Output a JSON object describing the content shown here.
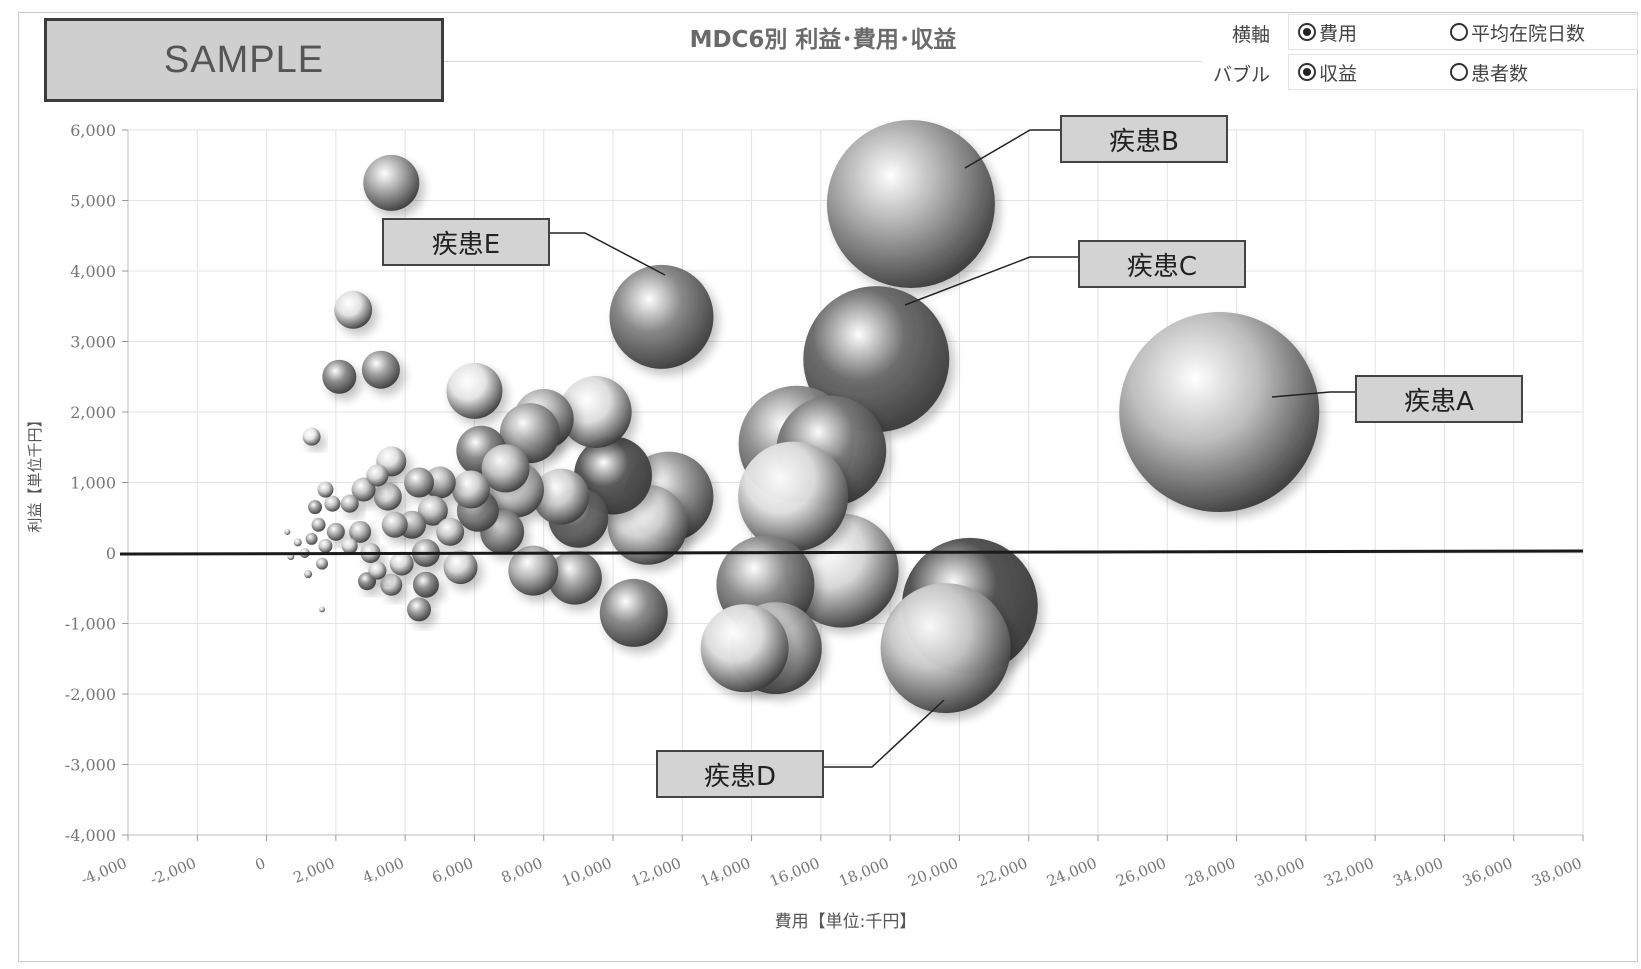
{
  "watermark": "SAMPLE",
  "options": {
    "row1_label": "横軸",
    "row1_opt1": "費用",
    "row1_opt2": "平均在院日数",
    "row2_label": "バブル",
    "row2_opt1": "収益",
    "row2_opt2": "患者数",
    "row1_selected": 1,
    "row2_selected": 1
  },
  "chart_data": {
    "type": "scatter",
    "title": "MDC6別 利益･費用･収益",
    "xlabel": "費用【単位:千円】",
    "ylabel": "利益【単位千円】",
    "xlim": [
      -4000,
      38000
    ],
    "ylim": [
      -4000,
      6000
    ],
    "x_ticks": [
      "-4,000",
      "-2,000",
      "0",
      "2,000",
      "4,000",
      "6,000",
      "8,000",
      "10,000",
      "12,000",
      "14,000",
      "16,000",
      "18,000",
      "20,000",
      "22,000",
      "24,000",
      "26,000",
      "28,000",
      "30,000",
      "32,000",
      "34,000",
      "36,000",
      "38,000"
    ],
    "x_tick_values": [
      -4000,
      -2000,
      0,
      2000,
      4000,
      6000,
      8000,
      10000,
      12000,
      14000,
      16000,
      18000,
      20000,
      22000,
      24000,
      26000,
      28000,
      30000,
      32000,
      34000,
      36000,
      38000
    ],
    "y_ticks": [
      "6,000",
      "5,000",
      "4,000",
      "3,000",
      "2,000",
      "1,000",
      "0",
      "-1,000",
      "-2,000",
      "-3,000",
      "-4,000"
    ],
    "y_tick_values": [
      6000,
      5000,
      4000,
      3000,
      2000,
      1000,
      0,
      -1000,
      -2000,
      -3000,
      -4000
    ],
    "grid": true,
    "bubble_size_metric": "収益",
    "bubbles": [
      {
        "x": 27500,
        "y": 2000,
        "r": 1.0,
        "tone": "#bdbdbd"
      },
      {
        "x": 18600,
        "y": 4950,
        "r": 0.84,
        "tone": "#a9a9a9"
      },
      {
        "x": 17600,
        "y": 2750,
        "r": 0.73,
        "tone": "#6a6a6a"
      },
      {
        "x": 20300,
        "y": -750,
        "r": 0.68,
        "tone": "#505050"
      },
      {
        "x": 19600,
        "y": -1350,
        "r": 0.65,
        "tone": "#c8c8c8"
      },
      {
        "x": 16600,
        "y": -250,
        "r": 0.57,
        "tone": "#d6d6d6"
      },
      {
        "x": 16300,
        "y": 1450,
        "r": 0.55,
        "tone": "#7a7a7a"
      },
      {
        "x": 15300,
        "y": 1550,
        "r": 0.58,
        "tone": "#909090"
      },
      {
        "x": 15200,
        "y": 800,
        "r": 0.55,
        "tone": "#dedede"
      },
      {
        "x": 14400,
        "y": -450,
        "r": 0.49,
        "tone": "#8a8a8a"
      },
      {
        "x": 14700,
        "y": -1350,
        "r": 0.46,
        "tone": "#b8b8b8"
      },
      {
        "x": 13800,
        "y": -1350,
        "r": 0.44,
        "tone": "#dcdcdc"
      },
      {
        "x": 11400,
        "y": 3350,
        "r": 0.52,
        "tone": "#858585"
      },
      {
        "x": 11600,
        "y": 800,
        "r": 0.45,
        "tone": "#9c9c9c"
      },
      {
        "x": 11000,
        "y": 400,
        "r": 0.4,
        "tone": "#d0d0d0"
      },
      {
        "x": 10000,
        "y": 1100,
        "r": 0.39,
        "tone": "#555555"
      },
      {
        "x": 9500,
        "y": 2000,
        "r": 0.36,
        "tone": "#dcdcdc"
      },
      {
        "x": 10600,
        "y": -850,
        "r": 0.34,
        "tone": "#888888"
      },
      {
        "x": 9000,
        "y": 500,
        "r": 0.3,
        "tone": "#777777"
      },
      {
        "x": 8500,
        "y": 800,
        "r": 0.28,
        "tone": "#cfcfcf"
      },
      {
        "x": 8000,
        "y": 1900,
        "r": 0.3,
        "tone": "#b0b0b0"
      },
      {
        "x": 7600,
        "y": 1700,
        "r": 0.3,
        "tone": "#a4a4a4"
      },
      {
        "x": 8900,
        "y": -350,
        "r": 0.27,
        "tone": "#a0a0a0"
      },
      {
        "x": 7700,
        "y": -250,
        "r": 0.25,
        "tone": "#b4b4b4"
      },
      {
        "x": 7200,
        "y": 900,
        "r": 0.28,
        "tone": "#e0e0e0"
      },
      {
        "x": 6000,
        "y": 2300,
        "r": 0.28,
        "tone": "#e4e4e4"
      },
      {
        "x": 6200,
        "y": 1450,
        "r": 0.25,
        "tone": "#858585"
      },
      {
        "x": 6900,
        "y": 1200,
        "r": 0.24,
        "tone": "#c4c4c4"
      },
      {
        "x": 6800,
        "y": 300,
        "r": 0.22,
        "tone": "#9a9a9a"
      },
      {
        "x": 6100,
        "y": 600,
        "r": 0.21,
        "tone": "#8c8c8c"
      },
      {
        "x": 5900,
        "y": 900,
        "r": 0.19,
        "tone": "#d2d2d2"
      },
      {
        "x": 5600,
        "y": -200,
        "r": 0.17,
        "tone": "#d8d8d8"
      },
      {
        "x": 3600,
        "y": 5250,
        "r": 0.28,
        "tone": "#a8a8a8"
      },
      {
        "x": 2500,
        "y": 3450,
        "r": 0.19,
        "tone": "#e2e2e2"
      },
      {
        "x": 3300,
        "y": 2600,
        "r": 0.19,
        "tone": "#999999"
      },
      {
        "x": 2100,
        "y": 2500,
        "r": 0.17,
        "tone": "#8a8a8a"
      },
      {
        "x": 3600,
        "y": 1300,
        "r": 0.15,
        "tone": "#e0e0e0"
      },
      {
        "x": 1300,
        "y": 1650,
        "r": 0.09,
        "tone": "#e8e8e8"
      },
      {
        "x": 5000,
        "y": 1000,
        "r": 0.16,
        "tone": "#bbbbbb"
      },
      {
        "x": 4400,
        "y": 1000,
        "r": 0.15,
        "tone": "#a9a9a9"
      },
      {
        "x": 4800,
        "y": 600,
        "r": 0.15,
        "tone": "#c4c4c4"
      },
      {
        "x": 4200,
        "y": 400,
        "r": 0.14,
        "tone": "#b8b8b8"
      },
      {
        "x": 3500,
        "y": 800,
        "r": 0.14,
        "tone": "#d4d4d4"
      },
      {
        "x": 3700,
        "y": 400,
        "r": 0.13,
        "tone": "#c0c0c0"
      },
      {
        "x": 4600,
        "y": 0,
        "r": 0.14,
        "tone": "#a4a4a4"
      },
      {
        "x": 5300,
        "y": 300,
        "r": 0.14,
        "tone": "#cbcbcb"
      },
      {
        "x": 4600,
        "y": -450,
        "r": 0.13,
        "tone": "#8a8a8a"
      },
      {
        "x": 4400,
        "y": -800,
        "r": 0.12,
        "tone": "#9c9c9c"
      },
      {
        "x": 3900,
        "y": -150,
        "r": 0.12,
        "tone": "#d9d9d9"
      },
      {
        "x": 3600,
        "y": -450,
        "r": 0.11,
        "tone": "#cfcfcf"
      },
      {
        "x": 2800,
        "y": 900,
        "r": 0.12,
        "tone": "#c4c4c4"
      },
      {
        "x": 3200,
        "y": 1100,
        "r": 0.11,
        "tone": "#d6d6d6"
      },
      {
        "x": 2700,
        "y": 300,
        "r": 0.11,
        "tone": "#b8b8b8"
      },
      {
        "x": 3000,
        "y": 0,
        "r": 0.1,
        "tone": "#cbcbcb"
      },
      {
        "x": 2900,
        "y": -400,
        "r": 0.09,
        "tone": "#888888"
      },
      {
        "x": 3200,
        "y": -250,
        "r": 0.09,
        "tone": "#d2d2d2"
      },
      {
        "x": 2400,
        "y": 700,
        "r": 0.09,
        "tone": "#bcbcbc"
      },
      {
        "x": 2000,
        "y": 300,
        "r": 0.09,
        "tone": "#aaaaaa"
      },
      {
        "x": 1900,
        "y": 700,
        "r": 0.08,
        "tone": "#c6c6c6"
      },
      {
        "x": 1700,
        "y": 900,
        "r": 0.08,
        "tone": "#d0d0d0"
      },
      {
        "x": 1400,
        "y": 650,
        "r": 0.07,
        "tone": "#999999"
      },
      {
        "x": 1500,
        "y": 400,
        "r": 0.07,
        "tone": "#b2b2b2"
      },
      {
        "x": 2400,
        "y": 100,
        "r": 0.08,
        "tone": "#d8d8d8"
      },
      {
        "x": 1700,
        "y": 100,
        "r": 0.07,
        "tone": "#c8c8c8"
      },
      {
        "x": 1300,
        "y": 200,
        "r": 0.06,
        "tone": "#a8a8a8"
      },
      {
        "x": 1100,
        "y": 0,
        "r": 0.05,
        "tone": "#d2d2d2"
      },
      {
        "x": 1600,
        "y": -150,
        "r": 0.06,
        "tone": "#bcbcbc"
      },
      {
        "x": 900,
        "y": 150,
        "r": 0.04,
        "tone": "#cccccc"
      },
      {
        "x": 700,
        "y": -50,
        "r": 0.035,
        "tone": "#d8d8d8"
      },
      {
        "x": 600,
        "y": 300,
        "r": 0.03,
        "tone": "#d0d0d0"
      },
      {
        "x": 1200,
        "y": -300,
        "r": 0.04,
        "tone": "#c2c2c2"
      },
      {
        "x": 1600,
        "y": -800,
        "r": 0.03,
        "tone": "#d2d2d2"
      }
    ],
    "annotations": [
      {
        "text": "疾患A",
        "x": 27500,
        "y": 2000
      },
      {
        "text": "疾患B",
        "x": 18600,
        "y": 4950
      },
      {
        "text": "疾患C",
        "x": 17600,
        "y": 2750
      },
      {
        "text": "疾患D",
        "x": 19600,
        "y": -1350
      },
      {
        "text": "疾患E",
        "x": 11400,
        "y": 3350
      }
    ]
  }
}
